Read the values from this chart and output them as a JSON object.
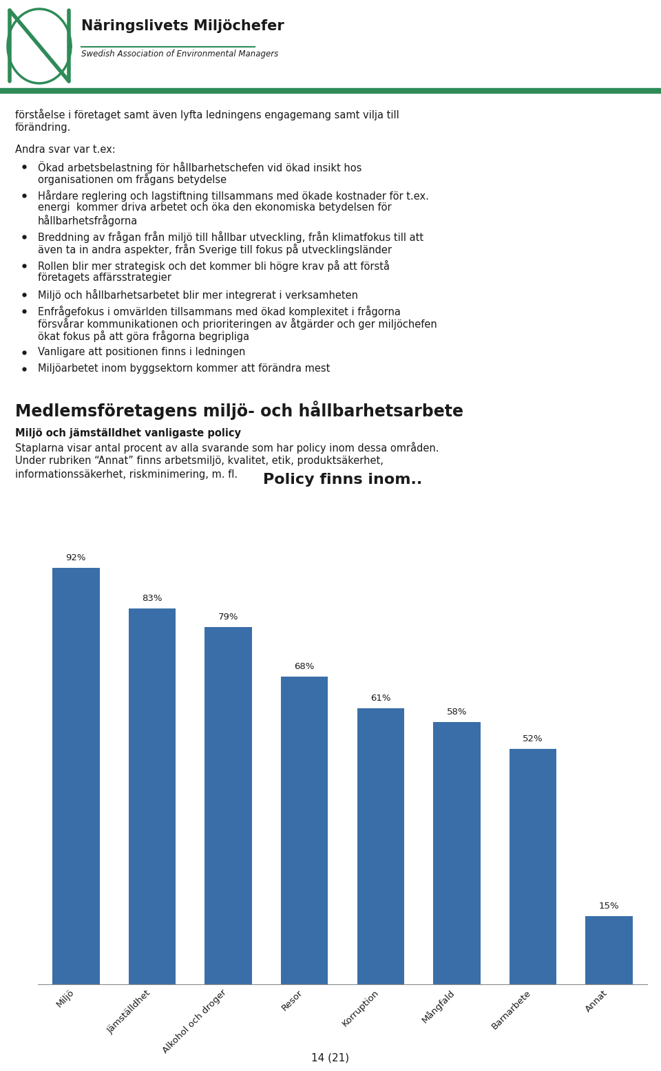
{
  "header_title": "Näringslivets Miljöchefer",
  "header_subtitle": "Swedish Association of Environmental Managers",
  "header_line_color": "#2e8b57",
  "background_color": "#ffffff",
  "text_color": "#1a1a1a",
  "intro_line1": "förståelse i företaget samt även lyfta ledningens engagemang samt vilja till",
  "intro_line2": "förändring.",
  "section1_header": "Andra svar var t.ex:",
  "bullet1_lines": [
    "Ökad arbetsbelastning för hållbarhetschefen vid ökad insikt hos",
    "organisationen om frågans betydelse"
  ],
  "bullet2_lines": [
    "Hårdare reglering och lagstiftning tillsammans med ökade kostnader för t.ex.",
    "energi  kommer driva arbetet och öka den ekonomiska betydelsen för",
    "hållbarhetsfrågorna"
  ],
  "bullet3_lines": [
    "Breddning av frågan från miljö till hållbar utveckling, från klimatfokus till att",
    "även ta in andra aspekter, från Sverige till fokus på utvecklingsländer"
  ],
  "bullet4_lines": [
    "Rollen blir mer strategisk och det kommer bli högre krav på att förstå",
    "företagets affärsstrategier"
  ],
  "bullet5_lines": [
    "Miljö och hållbarhetsarbetet blir mer integrerat i verksamheten"
  ],
  "bullet6_lines": [
    "Enfrågefokus i omvärlden tillsammans med ökad komplexitet i frågorna",
    "försvårar kommunikationen och prioriteringen av åtgärder och ger miljöchefen",
    "ökat fokus på att göra frågorna begripliga"
  ],
  "bullet7_lines": [
    "Vanligare att positionen finns i ledningen"
  ],
  "bullet8_lines": [
    "Miljöarbetet inom byggsektorn kommer att förändra mest"
  ],
  "section2_header": "Medlemsföretagens miljö- och hållbarhetsarbete",
  "section2_subheader": "Miljö och jämställdhet vanligaste policy",
  "section2_body_line1": "Staplarna visar antal procent av alla svarande som har policy inom dessa områden.",
  "section2_body_line2": "Under rubriken “Annat” finns arbetsmiljö, kvalitet, etik, produktsäkerhet,",
  "section2_body_line3": "informationssäkerhet, riskminimering, m. fl.",
  "chart_title": "Policy finns inom..",
  "chart_title_fontsize": 16,
  "bar_color": "#3a6ea8",
  "categories": [
    "Miljö",
    "Jämställdhet",
    "Alkohol och droger",
    "Resor",
    "Korruption",
    "Mångfald",
    "Barnarbete",
    "Annat"
  ],
  "values": [
    92,
    83,
    79,
    68,
    61,
    58,
    52,
    15
  ],
  "footer_text": "14 (21)"
}
